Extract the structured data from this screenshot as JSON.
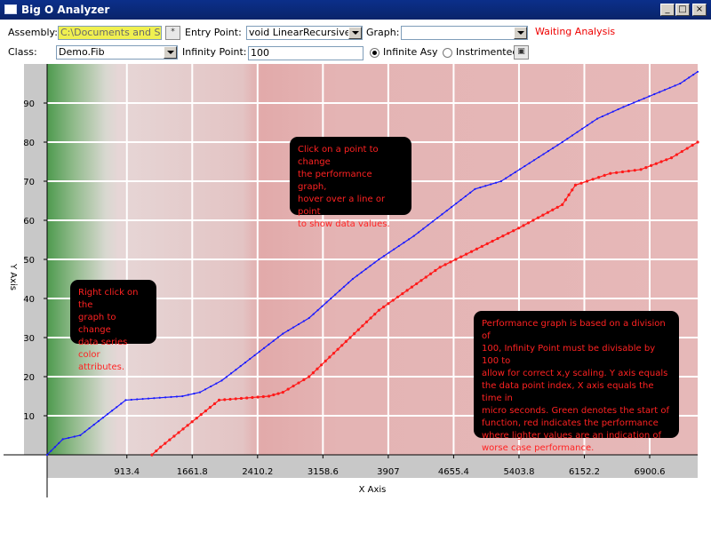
{
  "window": {
    "title": "Big O Analyzer",
    "minimize": "_",
    "maximize": "□",
    "close": "×"
  },
  "toolbar": {
    "assembly_label": "Assembly:",
    "assembly_value": "C:\\Documents and Sett",
    "assembly_browse": "*",
    "entry_label": "Entry Point:",
    "entry_value": "void LinearRecursiveF",
    "graph_label": "Graph:",
    "graph_value": "",
    "status": "Waiting Analysis",
    "class_label": "Class:",
    "class_value": "Demo.Fib",
    "infinity_label": "Infinity Point:",
    "infinity_value": "100",
    "radio_infinite": "Infinite Asy",
    "radio_instrumented": "Instrimented",
    "run_button": "▣"
  },
  "tooltips": {
    "right_click": "Right click on the\ngraph to change\ndata series color\nattributes.",
    "click_point": "Click on a point to change\nthe performance graph,\nhover over a line or point\nto show data values.",
    "performance": "Performance graph is based on a division of\n100, Infinity Point must be divisable by 100 to\nallow for correct x,y scaling.  Y axis equals\nthe data point index, X axis equals the time in\nmicro seconds.  Green denotes the start of\nfunction, red indicates the performance\nwhere lighter values are an indication of\nworse case performance."
  },
  "colors": {
    "accent_title": "#0a246a",
    "status": "#e00000",
    "series_blue": "#1a1aff",
    "series_red": "#ff1a1a"
  },
  "chart_data": {
    "type": "line",
    "xlabel": "X Axis",
    "ylabel": "Y Axis",
    "xlim": [
      0,
      7450
    ],
    "ylim": [
      0,
      100
    ],
    "xticks": [
      "913.4",
      "1661.8",
      "2410.2",
      "3158.6",
      "3907",
      "4655.4",
      "5403.8",
      "6152.2",
      "6900.6"
    ],
    "yticks": [
      "10",
      "20",
      "30",
      "40",
      "50",
      "60",
      "70",
      "80",
      "90"
    ],
    "grid": true,
    "series": [
      {
        "color": "#1a1aff",
        "points": [
          [
            0,
            0
          ],
          [
            180,
            4
          ],
          [
            380,
            5
          ],
          [
            900,
            14
          ],
          [
            1550,
            15
          ],
          [
            1750,
            16
          ],
          [
            2000,
            19
          ],
          [
            2700,
            31
          ],
          [
            3000,
            35
          ],
          [
            3500,
            45
          ],
          [
            3800,
            50
          ],
          [
            4200,
            56
          ],
          [
            4900,
            68
          ],
          [
            5200,
            70
          ],
          [
            5900,
            80
          ],
          [
            6300,
            86
          ],
          [
            6600,
            89
          ],
          [
            7250,
            95
          ],
          [
            7450,
            98
          ]
        ]
      },
      {
        "color": "#ff1a1a",
        "points": [
          [
            1200,
            0
          ],
          [
            1300,
            2
          ],
          [
            1970,
            14
          ],
          [
            2540,
            15
          ],
          [
            2700,
            16
          ],
          [
            3000,
            20
          ],
          [
            3800,
            37
          ],
          [
            4500,
            48
          ],
          [
            5400,
            58
          ],
          [
            5900,
            64
          ],
          [
            6050,
            69
          ],
          [
            6450,
            72
          ],
          [
            6800,
            73
          ],
          [
            7150,
            76
          ],
          [
            7450,
            80
          ]
        ]
      }
    ]
  }
}
